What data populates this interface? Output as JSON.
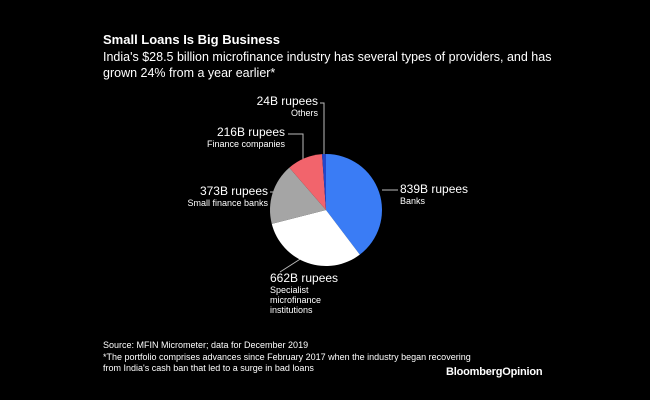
{
  "chart_data": {
    "type": "pie",
    "title": "Small Loans Is Big Business",
    "subtitle": "India's $28.5 billion microfinance industry has several types of providers, and has grown 24% from a year earlier*",
    "categories": [
      "Banks",
      "Specialist microfinance institutions",
      "Small finance banks",
      "Finance companies",
      "Others"
    ],
    "values": [
      839,
      662,
      373,
      216,
      24
    ],
    "value_labels": [
      "839B rupees",
      "662B rupees",
      "373B rupees",
      "216B rupees",
      "24B rupees"
    ],
    "colors": [
      "#3a7cf5",
      "#ffffff",
      "#a5a5a5",
      "#f2646c",
      "#2447c9"
    ],
    "source": "Source: MFIN Micrometer; data for December 2019",
    "footnote": "*The portfolio comprises advances since February 2017 when the industry began recovering from India's cash ban that led to a surge in bad loans",
    "brand": "BloombergOpinion"
  }
}
